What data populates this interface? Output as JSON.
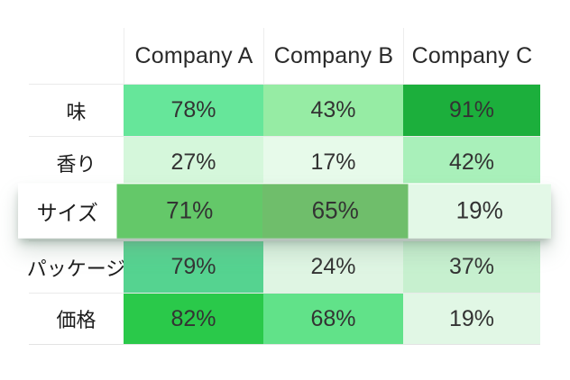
{
  "table": {
    "column_headers": [
      "Company A",
      "Company B",
      "Company C"
    ],
    "rows": [
      {
        "label": "味",
        "cells": [
          {
            "value": "78%",
            "bg": "#66E69A"
          },
          {
            "value": "43%",
            "bg": "#96ECA4"
          },
          {
            "value": "91%",
            "bg": "#1CAF3C"
          }
        ]
      },
      {
        "label": "香り",
        "cells": [
          {
            "value": "27%",
            "bg": "#D5F7DB"
          },
          {
            "value": "17%",
            "bg": "#E7FAEA"
          },
          {
            "value": "42%",
            "bg": "#A9F0BA"
          }
        ]
      },
      {
        "label": "サイズ",
        "highlighted": true,
        "cells": [
          {
            "value": "71%",
            "bg": "#64C869"
          },
          {
            "value": "65%",
            "bg": "#6FBE6B"
          },
          {
            "value": "19%",
            "bg": "#E3F8E7"
          }
        ]
      },
      {
        "label": "パッケージ",
        "cells": [
          {
            "value": "79%",
            "bg": "#55D390"
          },
          {
            "value": "24%",
            "bg": "#DFF5E3"
          },
          {
            "value": "37%",
            "bg": "#C7F0CF"
          }
        ]
      },
      {
        "label": "価格",
        "cells": [
          {
            "value": "82%",
            "bg": "#2AC94A"
          },
          {
            "value": "68%",
            "bg": "#61E289"
          },
          {
            "value": "19%",
            "bg": "#E1F7E5"
          }
        ]
      }
    ]
  },
  "chart_data": {
    "type": "heatmap",
    "x_categories": [
      "Company A",
      "Company B",
      "Company C"
    ],
    "y_categories": [
      "味",
      "香り",
      "サイズ",
      "パッケージ",
      "価格"
    ],
    "values": [
      [
        78,
        43,
        91
      ],
      [
        27,
        17,
        42
      ],
      [
        71,
        65,
        19
      ],
      [
        79,
        24,
        37
      ],
      [
        82,
        68,
        19
      ]
    ],
    "value_format": "percent",
    "highlighted_row": "サイズ",
    "colorscale": "white-to-green",
    "accent_color_max": "#1CAF3C",
    "accent_color_min": "#E7FAEA",
    "legend": "none",
    "grid": "light-gray row separators, header column separators"
  }
}
